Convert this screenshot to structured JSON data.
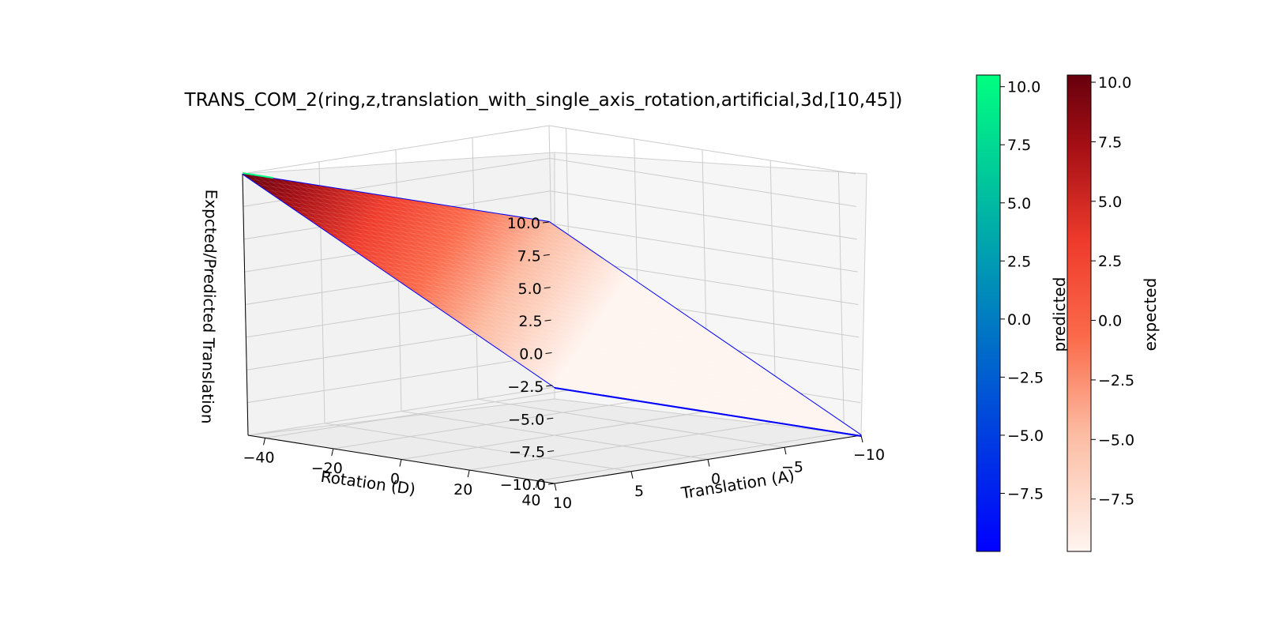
{
  "chart_data": {
    "type": "surface3d",
    "title": "TRANS_COM_2(ring,z,translation_with_single_axis_rotation,artificial,3d,[10,45])",
    "xlabel": "Rotation (D)",
    "ylabel": "Translation (A)",
    "zlabel": "Expcted/Predicted Translation",
    "x_ticks": [
      -40,
      -20,
      0,
      20,
      40
    ],
    "y_ticks": [
      10,
      5,
      0,
      -5,
      -10
    ],
    "z_ticks": [
      10.0,
      7.5,
      5.0,
      2.5,
      0.0,
      -2.5,
      -5.0,
      -7.5,
      -10.0
    ],
    "x_tick_labels": [
      "−40",
      "−20",
      "0",
      "20",
      "40"
    ],
    "y_tick_labels": [
      "10",
      "5",
      "0",
      "−5",
      "−10"
    ],
    "z_tick_labels": [
      "10.0",
      "7.5",
      "5.0",
      "2.5",
      "0.0",
      "−2.5",
      "−5.0",
      "−7.5",
      "−10.0"
    ],
    "xlim": [
      -45,
      45
    ],
    "ylim": [
      -10,
      10
    ],
    "zlim": [
      -10,
      10
    ],
    "grid": true,
    "surface": {
      "expected_value_range": [
        -10,
        10
      ],
      "predicted_value_range": [
        -10,
        10
      ],
      "relation": "z = translation"
    },
    "series": [
      {
        "name": "expected",
        "colormap": "Reds",
        "color_low": "#fff5f0",
        "color_high": "#67000d"
      },
      {
        "name": "predicted",
        "colormap": "winter",
        "color_low": "#0000ff",
        "color_high": "#00ff80"
      }
    ],
    "colorbars": [
      {
        "label": "predicted",
        "range": [
          -10,
          10.5
        ],
        "ticks": [
          10.0,
          7.5,
          5.0,
          2.5,
          0.0,
          -2.5,
          -5.0,
          -7.5
        ],
        "tick_labels": [
          "10.0",
          "7.5",
          "5.0",
          "2.5",
          "0.0",
          "−2.5",
          "−5.0",
          "−7.5"
        ]
      },
      {
        "label": "expected",
        "range": [
          -9.7,
          10.3
        ],
        "ticks": [
          10.0,
          7.5,
          5.0,
          2.5,
          0.0,
          -2.5,
          -5.0,
          -7.5
        ],
        "tick_labels": [
          "10.0",
          "7.5",
          "5.0",
          "2.5",
          "0.0",
          "−2.5",
          "−5.0",
          "−7.5"
        ]
      }
    ]
  }
}
